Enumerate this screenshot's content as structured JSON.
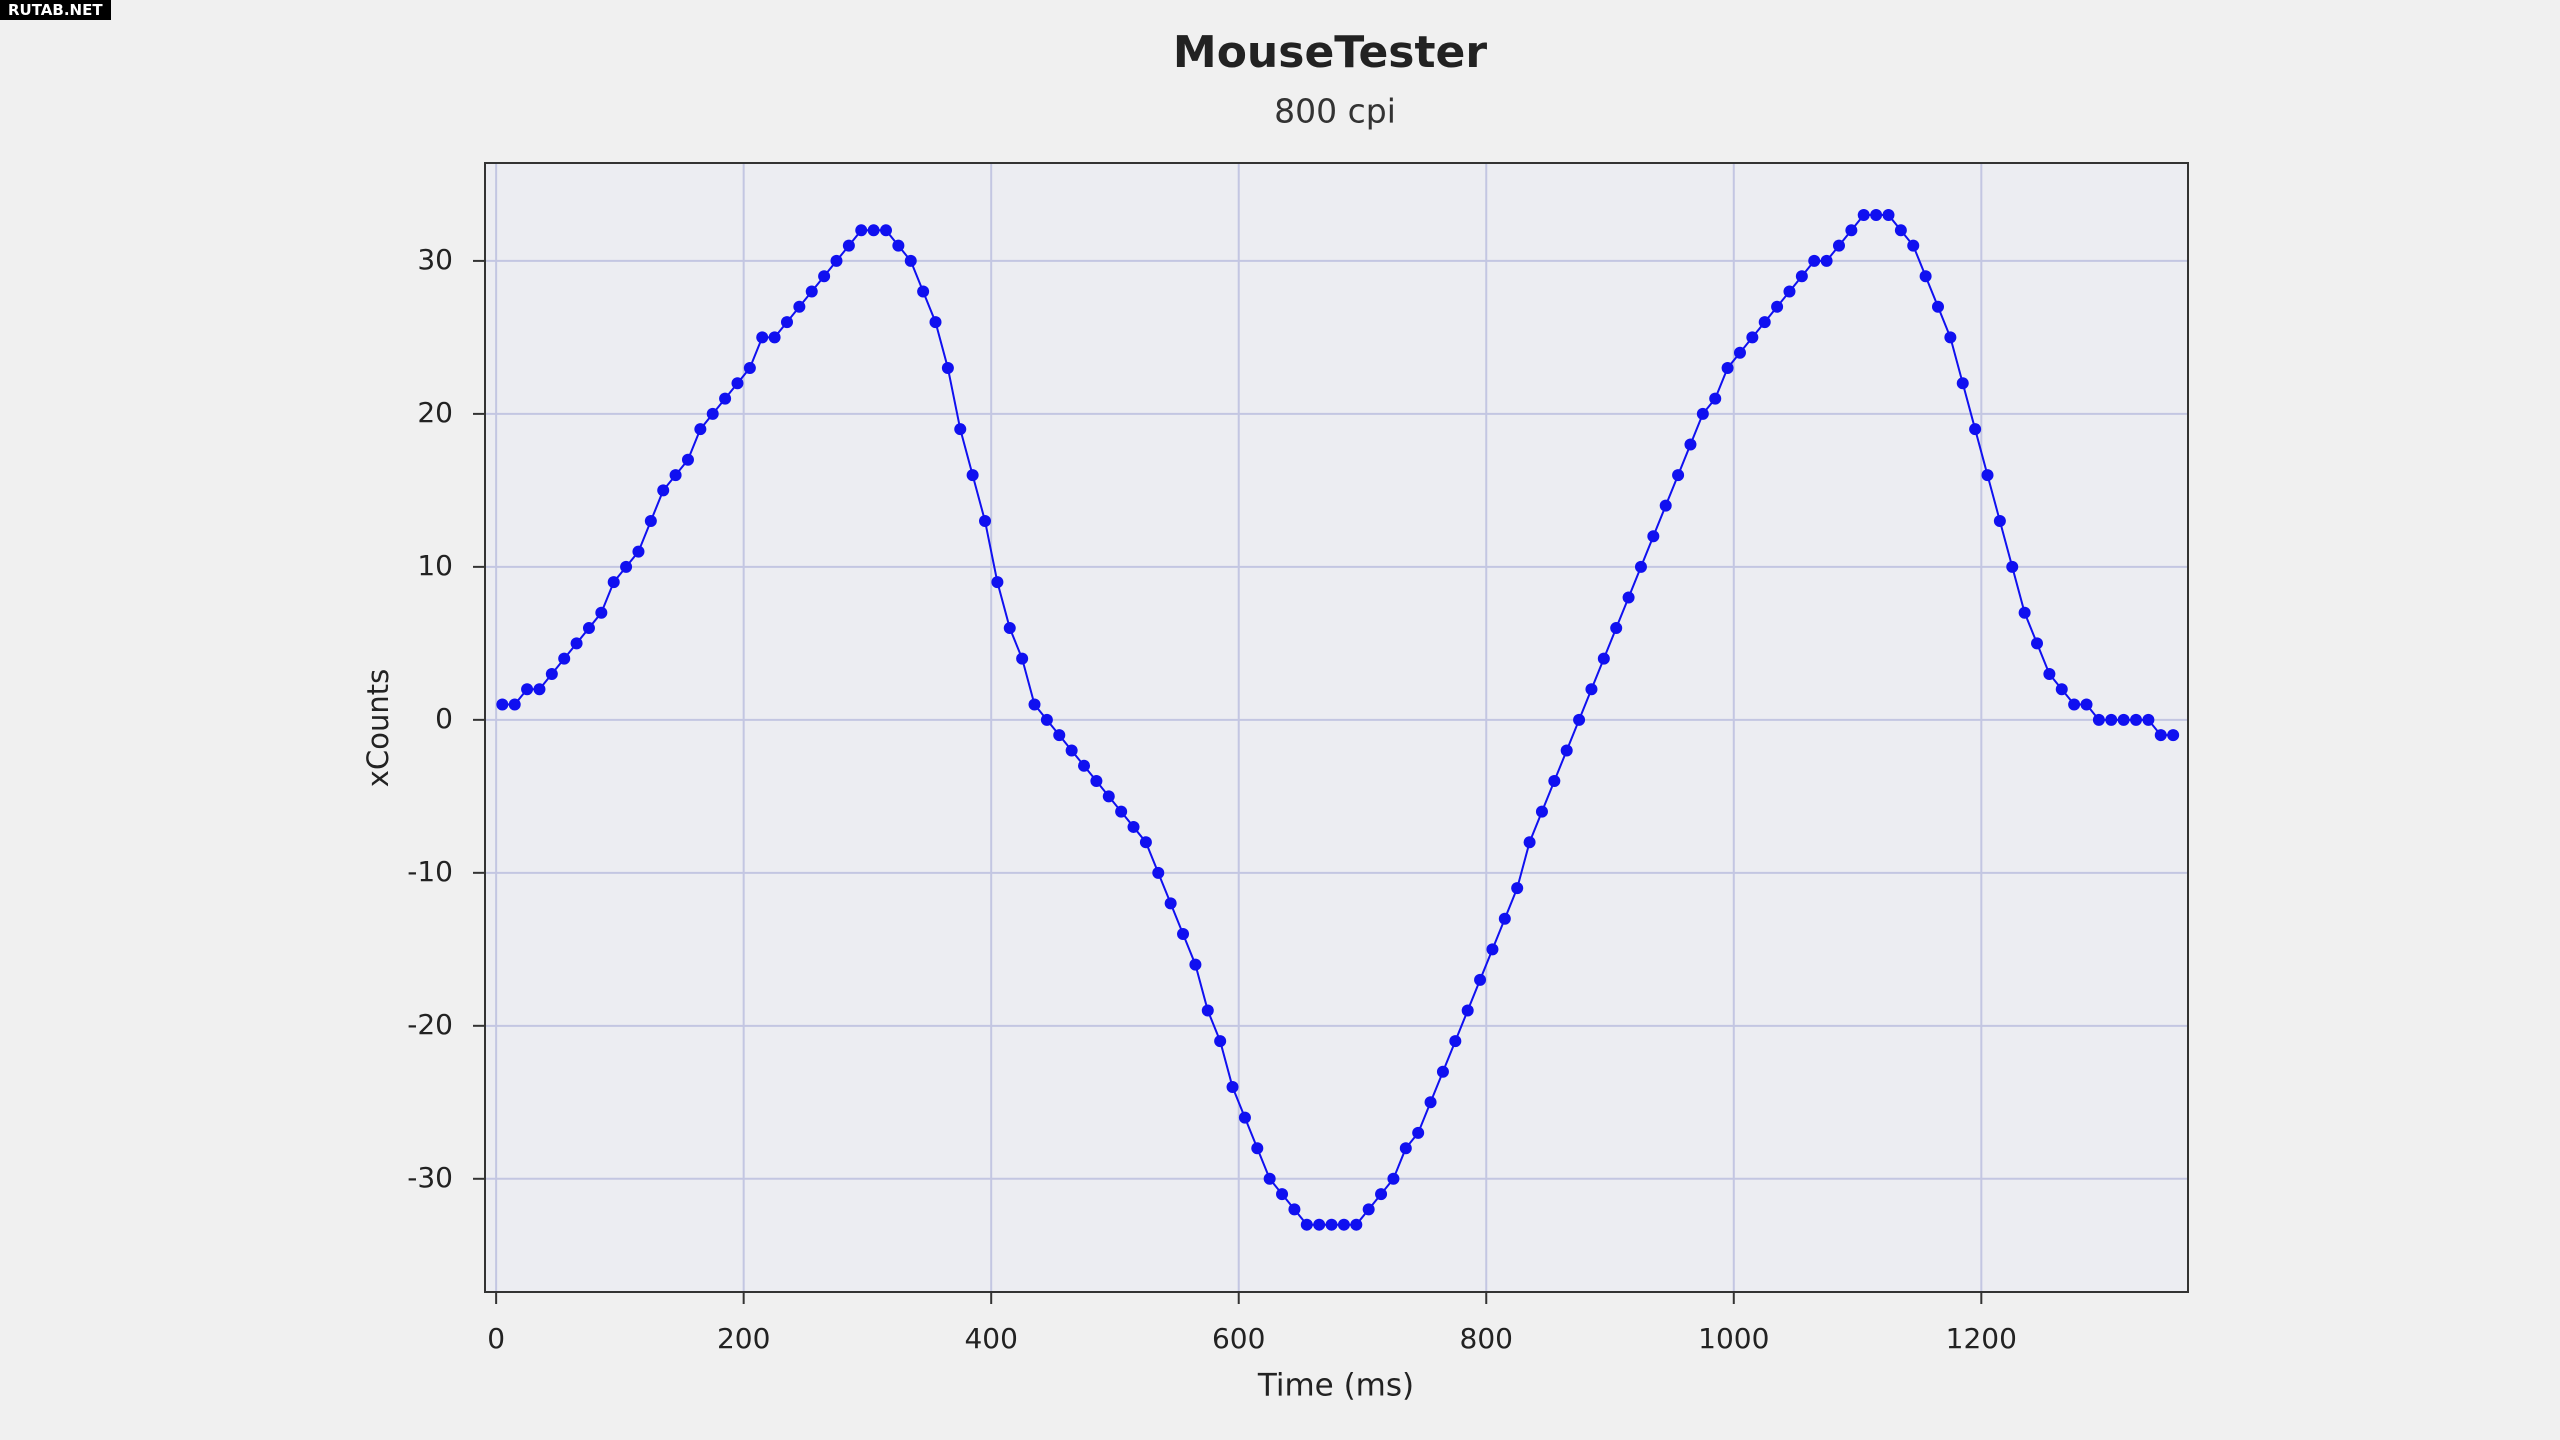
{
  "watermark": "RUTAB.NET",
  "chart_data": {
    "type": "line",
    "title": "MouseTester",
    "subtitle": "800 cpi",
    "x_label": "Time (ms)",
    "y_label": "xCounts",
    "xlim": [
      -9,
      1367
    ],
    "ylim": [
      -37.4,
      36.4
    ],
    "xticks": [
      0,
      200,
      400,
      600,
      800,
      1000,
      1200
    ],
    "yticks": [
      -30,
      -20,
      -10,
      0,
      10,
      20,
      30
    ],
    "grid": true,
    "markers": true,
    "series": [
      {
        "color": "#1010f0",
        "x": [
          5,
          15,
          25,
          35,
          45,
          55,
          65,
          75,
          85,
          95,
          105,
          115,
          125,
          135,
          145,
          155,
          165,
          175,
          185,
          195,
          205,
          215,
          225,
          235,
          245,
          255,
          265,
          275,
          285,
          295,
          305,
          315,
          325,
          335,
          345,
          355,
          365,
          375,
          385,
          395,
          405,
          415,
          425,
          435,
          445,
          455,
          465,
          475,
          485,
          495,
          505,
          515,
          525,
          535,
          545,
          555,
          565,
          575,
          585,
          595,
          605,
          615,
          625,
          635,
          645,
          655,
          665,
          675,
          685,
          695,
          705,
          715,
          725,
          735,
          745,
          755,
          765,
          775,
          785,
          795,
          805,
          815,
          825,
          835,
          845,
          855,
          865,
          875,
          885,
          895,
          905,
          915,
          925,
          935,
          945,
          955,
          965,
          975,
          985,
          995,
          1005,
          1015,
          1025,
          1035,
          1045,
          1055,
          1065,
          1075,
          1085,
          1095,
          1105,
          1115,
          1125,
          1135,
          1145,
          1155,
          1165,
          1175,
          1185,
          1195,
          1205,
          1215,
          1225,
          1235,
          1245,
          1255,
          1265,
          1275,
          1285,
          1295,
          1305,
          1315,
          1325,
          1335,
          1345,
          1355
        ],
        "values": [
          1,
          1,
          2,
          2,
          3,
          4,
          5,
          6,
          7,
          9,
          10,
          11,
          13,
          15,
          16,
          17,
          19,
          20,
          21,
          22,
          23,
          25,
          25,
          26,
          27,
          28,
          29,
          30,
          31,
          32,
          32,
          32,
          31,
          30,
          28,
          26,
          23,
          19,
          16,
          13,
          9,
          6,
          4,
          1,
          0,
          -1,
          -2,
          -3,
          -4,
          -5,
          -6,
          -7,
          -8,
          -10,
          -12,
          -14,
          -16,
          -19,
          -21,
          -24,
          -26,
          -28,
          -30,
          -31,
          -32,
          -33,
          -33,
          -33,
          -33,
          -33,
          -32,
          -31,
          -30,
          -28,
          -27,
          -25,
          -23,
          -21,
          -19,
          -17,
          -15,
          -13,
          -11,
          -8,
          -6,
          -4,
          -2,
          0,
          2,
          4,
          6,
          8,
          10,
          12,
          14,
          16,
          18,
          20,
          21,
          23,
          24,
          25,
          26,
          27,
          28,
          29,
          30,
          30,
          31,
          32,
          33,
          33,
          33,
          32,
          31,
          29,
          27,
          25,
          22,
          19,
          16,
          13,
          10,
          7,
          5,
          3,
          2,
          1,
          1,
          0,
          0,
          0,
          0,
          0,
          -1,
          -1
        ]
      }
    ]
  }
}
